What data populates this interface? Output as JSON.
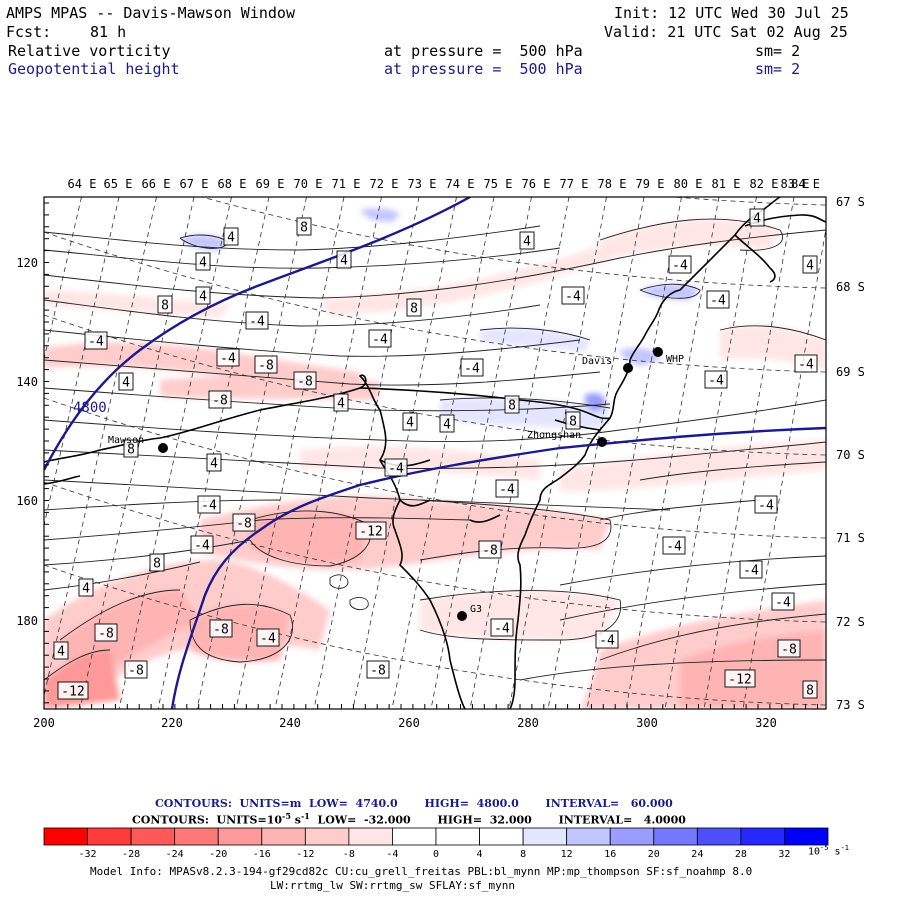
{
  "header": {
    "title": "AMPS MPAS -- Davis-Mawson Window",
    "init": "Init: 12 UTC Wed 30 Jul 25",
    "fcst_label": "Fcst:",
    "fcst_value": "81 h",
    "valid": "Valid: 21 UTC Sat 02 Aug 25",
    "field1_name": "Relative vorticity",
    "field1_level": "at pressure =  500 hPa",
    "field1_sm": "sm= 2",
    "field2_name": "Geopotential height",
    "field2_level": "at pressure =  500 hPa",
    "field2_sm": "sm= 2"
  },
  "map": {
    "top_lon_labels": [
      "64 E",
      "65 E",
      "66 E",
      "67 E",
      "68 E",
      "69 E",
      "70 E",
      "71 E",
      "72 E",
      "73 E",
      "74 E",
      "75 E",
      "76 E",
      "77 E",
      "78 E",
      "79 E",
      "80 E",
      "81 E",
      "82 E",
      "83 E",
      "84 E"
    ],
    "right_lat_labels": [
      "67 S",
      "68 S",
      "69 S",
      "70 S",
      "71 S",
      "72 S",
      "73 S"
    ],
    "left_y_ticks": [
      "120",
      "140",
      "160",
      "180"
    ],
    "bottom_x_ticks": [
      "200",
      "220",
      "240",
      "260",
      "280",
      "300",
      "320"
    ],
    "stations": [
      {
        "name": "Davis"
      },
      {
        "name": "WHP"
      },
      {
        "name": "Mawson"
      },
      {
        "name": "Zhongshan"
      },
      {
        "name": "G3"
      }
    ],
    "height_label": "4800",
    "vort_labels": [
      "4",
      "8",
      "-4",
      "-8",
      "-12"
    ]
  },
  "footer": {
    "contours1": "CONTOURS:  UNITS=m  LOW=  4740.0       HIGH=  4800.0       INTERVAL=   60.000",
    "contours2_prefix": "CONTOURS:  UNITS=10",
    "contours2_exp": "-5",
    "contours2_suffix": " s",
    "contours2_exp2": "-1",
    "contours2_rest": "  LOW=  -32.000       HIGH=  32.000       INTERVAL=   4.0000",
    "colorbar_values": [
      "-32",
      "-28",
      "-24",
      "-20",
      "-16",
      "-12",
      "-8",
      "-4",
      "0",
      "4",
      "8",
      "12",
      "16",
      "20",
      "24",
      "28",
      "32"
    ],
    "colorbar_unit": "10",
    "colorbar_unit_exp": "-5",
    "colorbar_unit_s": " s",
    "colorbar_unit_exp2": "-1",
    "model_info1": "Model Info: MPASv8.2.3-194-gf29cd82c CU:cu_grell_freitas PBL:bl_mynn MP:mp_thompson SF:sf_noahmp 8.0",
    "model_info2": "LW:rrtmg_lw SW:rrtmg_sw SFLAY:sf_mynn",
    "colorbar_colors": [
      "#ff0000",
      "#ff3a3a",
      "#ff5858",
      "#ff7878",
      "#ff9898",
      "#ffb4b4",
      "#ffcccc",
      "#ffe6e6",
      "#ffffff",
      "#ffffff",
      "#e4e6ff",
      "#c2c6ff",
      "#9a9cff",
      "#7478ff",
      "#4c50ff",
      "#2628ff",
      "#0000ff"
    ]
  }
}
